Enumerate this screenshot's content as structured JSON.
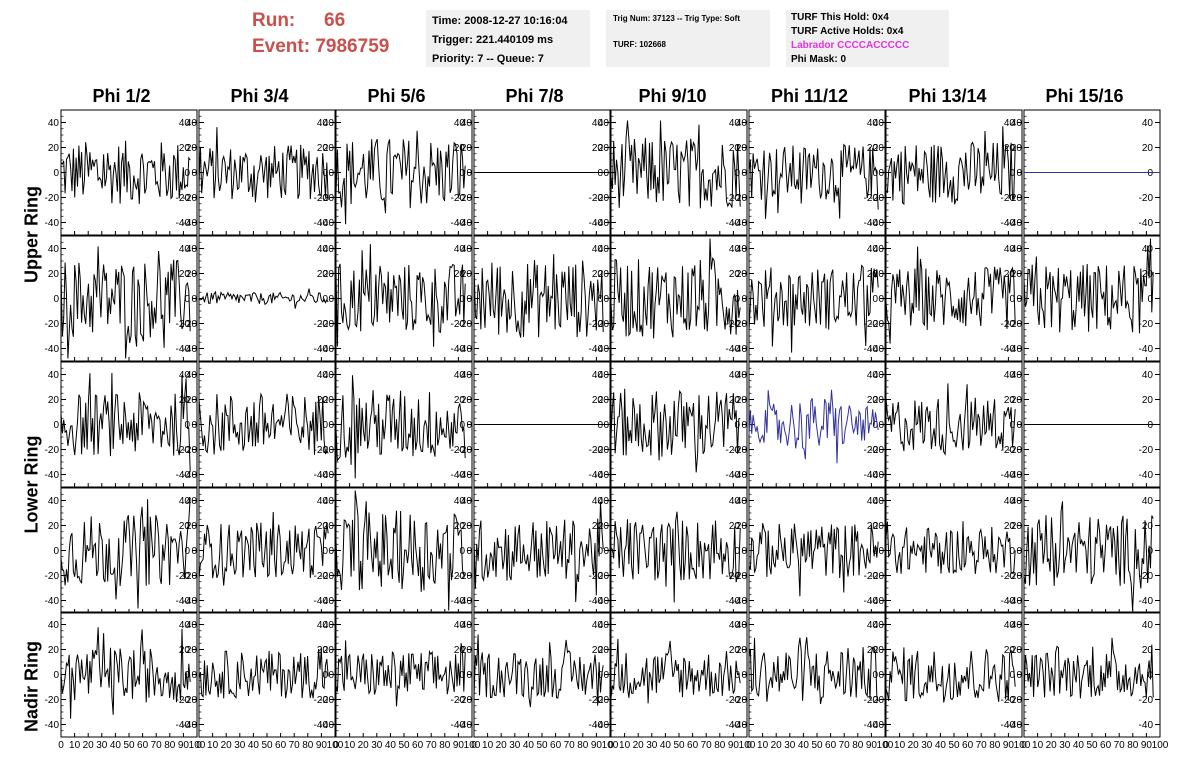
{
  "header": {
    "run_label": "Run:",
    "run_value": "66",
    "event_label": "Event:",
    "event_value": "7986759",
    "time_text": "Time: 2008-12-27 10:16:04",
    "trigger_text": "Trigger: 221.440109 ms",
    "priority_text": "Priority: 7 -- Queue: 7",
    "trig_num_text": "Trig Num: 37123 -- Trig Type: Soft",
    "turf_text": "TURF: 102668",
    "turf_hold_text": "TURF This Hold: 0x4",
    "turf_active_text": "TURF Active Holds: 0x4",
    "labrador_text": "Labrador CCCCACCCCC",
    "phi_mask_text": "Phi Mask: 0",
    "run_color": "#c9504c",
    "labrador_color": "#e033e0"
  },
  "columns": [
    "Phi 1/2",
    "Phi 3/4",
    "Phi 5/6",
    "Phi 7/8",
    "Phi 9/10",
    "Phi 11/12",
    "Phi 13/14",
    "Phi 15/16"
  ],
  "row_groups": [
    "Upper Ring",
    "Lower Ring",
    "Nadir Ring"
  ],
  "chart_data": {
    "type": "line",
    "grid": false,
    "xlim": [
      0,
      100
    ],
    "ylim": [
      -50,
      50
    ],
    "x_ticks": [
      "0",
      "10",
      "20",
      "30",
      "40",
      "50",
      "60",
      "70",
      "80",
      "90",
      "100"
    ],
    "y_ticks": [
      "-40",
      "-20",
      "0",
      "20",
      "40"
    ],
    "x_points": 95,
    "trace_color": "#000000",
    "highlight_color": "#32329a",
    "rows": [
      {
        "group": "Upper Ring",
        "amplitudes": [
          16,
          14,
          18,
          0,
          18,
          14,
          16,
          0
        ],
        "flat": [
          false,
          false,
          false,
          true,
          false,
          false,
          false,
          true
        ],
        "colors": [
          "#000000",
          "#000000",
          "#000000",
          "#000000",
          "#000000",
          "#000000",
          "#000000",
          "#32329a"
        ]
      },
      {
        "group": "Upper Ring",
        "amplitudes": [
          20,
          3,
          18,
          20,
          20,
          16,
          16,
          18
        ],
        "flat": [
          false,
          false,
          false,
          false,
          false,
          false,
          false,
          false
        ],
        "colors": [
          "#000000",
          "#000000",
          "#000000",
          "#000000",
          "#000000",
          "#000000",
          "#000000",
          "#000000"
        ]
      },
      {
        "group": "Lower Ring",
        "amplitudes": [
          16,
          16,
          18,
          0,
          18,
          14,
          14,
          0
        ],
        "flat": [
          false,
          false,
          false,
          true,
          false,
          false,
          false,
          true
        ],
        "colors": [
          "#000000",
          "#000000",
          "#000000",
          "#000000",
          "#000000",
          "#32329a",
          "#000000",
          "#000000"
        ]
      },
      {
        "group": "Lower Ring",
        "amplitudes": [
          18,
          14,
          20,
          16,
          16,
          14,
          12,
          18
        ],
        "flat": [
          false,
          false,
          false,
          false,
          false,
          false,
          false,
          false
        ],
        "colors": [
          "#000000",
          "#000000",
          "#000000",
          "#000000",
          "#000000",
          "#000000",
          "#000000",
          "#000000"
        ]
      },
      {
        "group": "Nadir Ring",
        "amplitudes": [
          14,
          12,
          12,
          12,
          12,
          14,
          14,
          12
        ],
        "flat": [
          false,
          false,
          false,
          false,
          false,
          false,
          false,
          false
        ],
        "colors": [
          "#000000",
          "#000000",
          "#000000",
          "#000000",
          "#000000",
          "#000000",
          "#000000",
          "#000000"
        ]
      }
    ]
  }
}
